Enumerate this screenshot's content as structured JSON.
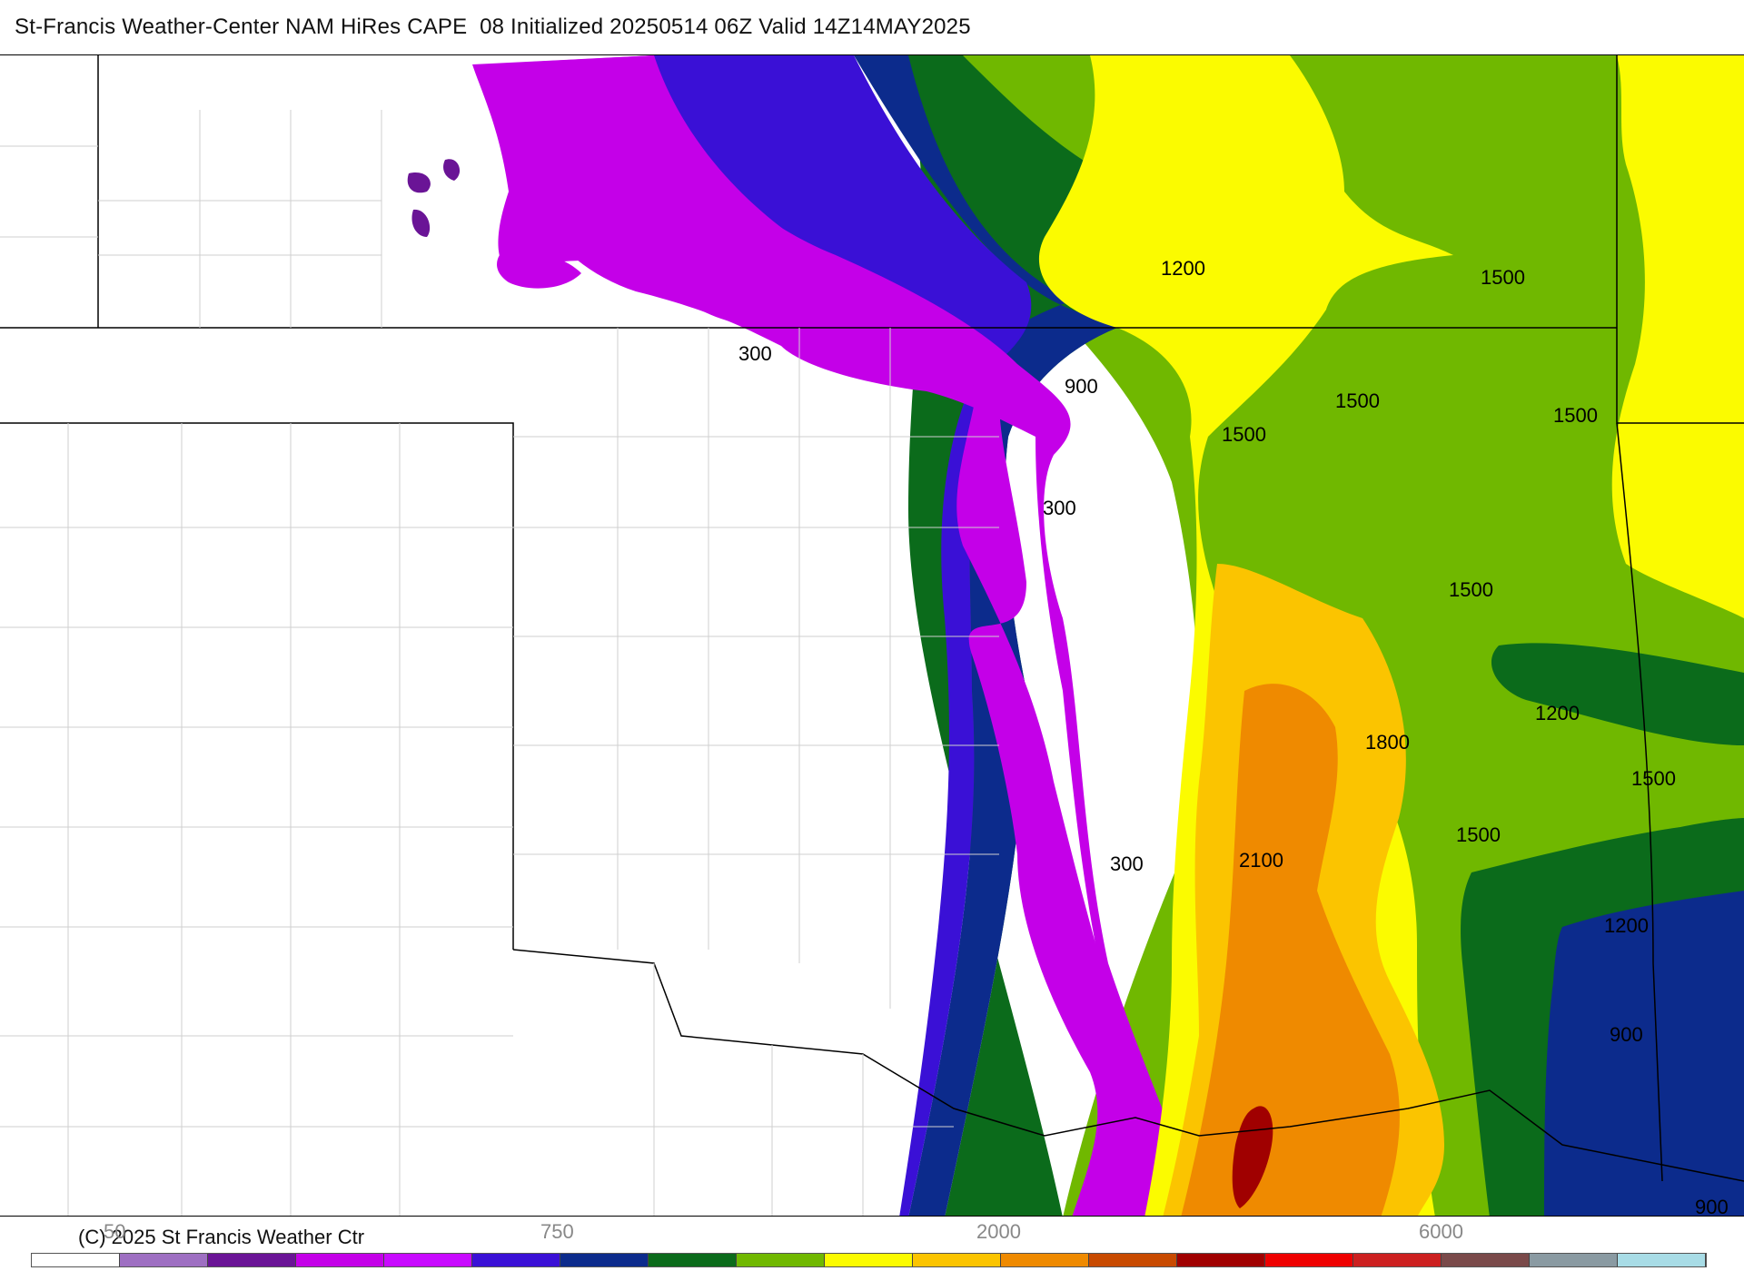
{
  "title": "St-Francis Weather-Center NAM HiRes CAPE  08 Initialized 20250514 06Z Valid 14Z14MAY2025",
  "copyright": "(C) 2025 St Francis Weather Ctr",
  "colorbar": {
    "tick_labels": [
      "50",
      "750",
      "2000",
      "6000"
    ],
    "colors": [
      "#ffffff",
      "#9e6fc2",
      "#6a1496",
      "#c400e8",
      "#c80aff",
      "#3a10d6",
      "#0c2b8c",
      "#0b6b1b",
      "#70b800",
      "#fbfb00",
      "#fbc400",
      "#ef8a00",
      "#c84a00",
      "#a00000",
      "#ee0000",
      "#cc2020",
      "#7a4a4a",
      "#8a9aa2",
      "#a8dce6"
    ]
  },
  "map": {
    "contour_labels": [
      "1200",
      "1500",
      "300",
      "900",
      "1500",
      "1500",
      "1500",
      "300",
      "1500",
      "1200",
      "1800",
      "1500",
      "1500",
      "2100",
      "300",
      "1200",
      "900",
      "900"
    ]
  },
  "fill_colors": {
    "purple_light": "#9e6fc2",
    "purple_dark": "#6a1496",
    "magenta": "#c400e8",
    "blue": "#3a10d6",
    "navy": "#0c2b8c",
    "dark_green": "#0b6b1b",
    "green": "#70b800",
    "yellow": "#fbfb00",
    "gold": "#fbc400",
    "orange": "#ef8a00",
    "brown": "#c84a00",
    "dark_red": "#a00000"
  }
}
